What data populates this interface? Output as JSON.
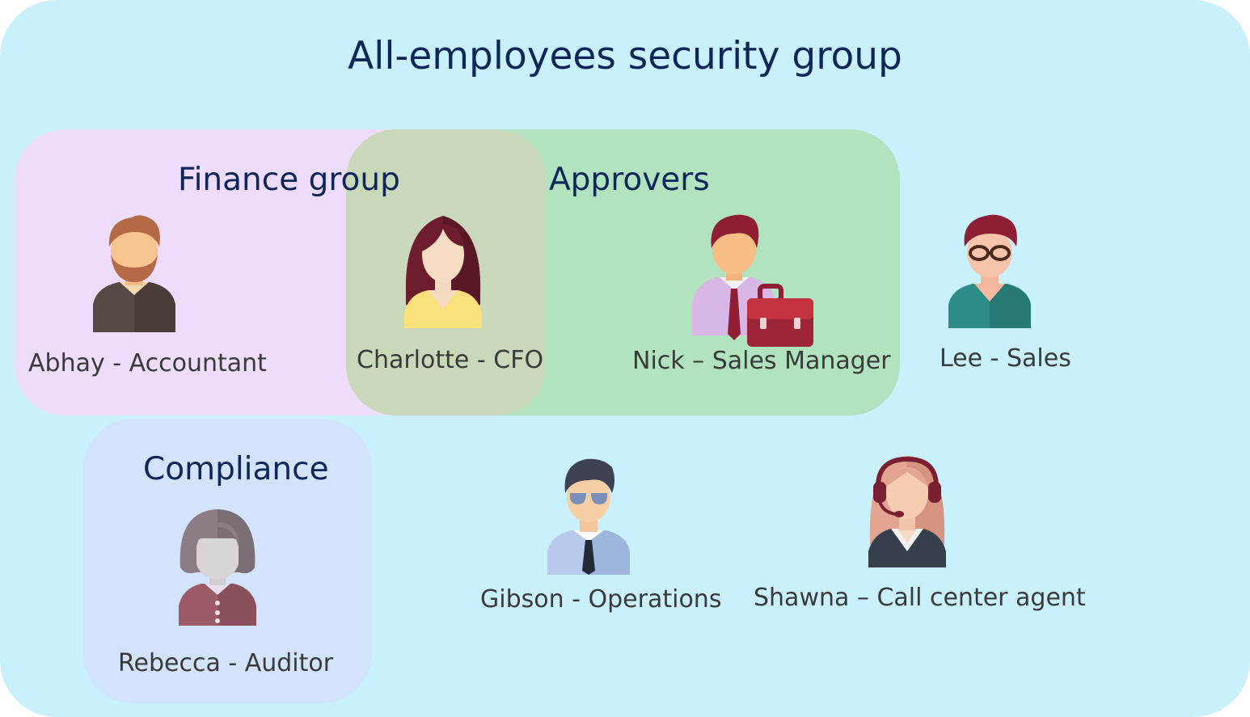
{
  "title": "All-employees security group",
  "groups": {
    "finance": "Finance group",
    "approvers": "Approvers",
    "compliance": "Compliance"
  },
  "people": {
    "abhay": "Abhay - Accountant",
    "charlotte": "Charlotte - CFO",
    "nick": "Nick – Sales Manager",
    "lee": "Lee - Sales",
    "rebecca": "Rebecca - Auditor",
    "gibson": "Gibson - Operations",
    "shawna": "Shawna – Call center agent"
  },
  "colors": {
    "all_employees": "#c8f0fd",
    "finance": "#eddcfb",
    "approvers": "#b1e4be",
    "overlap": "#c8d8b8",
    "compliance": "#d3e3fc",
    "title_text": "#0e2658",
    "label_text": "#3a3a3a"
  },
  "icons": [
    "man-beard-avatar-icon",
    "woman-avatar-icon",
    "manager-briefcase-avatar-icon",
    "man-glasses-avatar-icon",
    "woman-gray-avatar-icon",
    "man-sunglasses-tie-avatar-icon",
    "woman-headset-avatar-icon"
  ]
}
